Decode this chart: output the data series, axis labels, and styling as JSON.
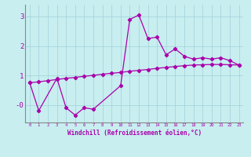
{
  "xlabel": "Windchill (Refroidissement éolien,°C)",
  "background_color": "#c8eef0",
  "grid_color": "#a0d0d8",
  "line_color": "#aa00aa",
  "xlim": [
    -0.5,
    23.5
  ],
  "ylim": [
    -0.6,
    3.4
  ],
  "xticks": [
    0,
    1,
    2,
    3,
    4,
    5,
    6,
    7,
    8,
    9,
    10,
    11,
    12,
    13,
    14,
    15,
    16,
    17,
    18,
    19,
    20,
    21,
    22,
    23
  ],
  "yticks": [
    0.0,
    1.0,
    2.0,
    3.0
  ],
  "ytick_labels": [
    "-0",
    "1",
    "2",
    "3"
  ],
  "line1_x": [
    0,
    1,
    3,
    4,
    5,
    6,
    7,
    10,
    11,
    12,
    13,
    14,
    15,
    16,
    17,
    18,
    19,
    20,
    21,
    22,
    23
  ],
  "line1_y": [
    0.75,
    -0.2,
    0.9,
    -0.1,
    -0.35,
    -0.1,
    -0.15,
    0.65,
    2.9,
    3.05,
    2.25,
    2.3,
    1.7,
    1.9,
    1.65,
    1.55,
    1.6,
    1.55,
    1.6,
    1.5,
    1.35
  ],
  "line2_x": [
    0,
    1,
    2,
    3,
    4,
    5,
    6,
    7,
    8,
    9,
    10,
    11,
    12,
    13,
    14,
    15,
    16,
    17,
    18,
    19,
    20,
    21,
    22,
    23
  ],
  "line2_y": [
    0.75,
    0.78,
    0.82,
    0.86,
    0.9,
    0.93,
    0.97,
    1.0,
    1.04,
    1.07,
    1.1,
    1.14,
    1.17,
    1.2,
    1.24,
    1.27,
    1.3,
    1.33,
    1.35,
    1.36,
    1.37,
    1.37,
    1.36,
    1.35
  ]
}
